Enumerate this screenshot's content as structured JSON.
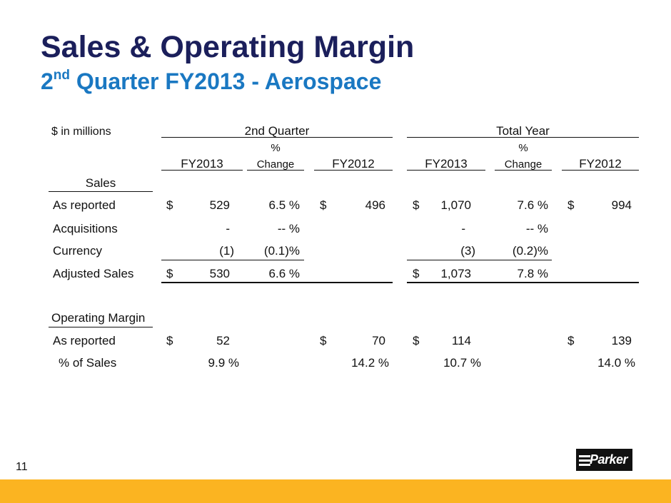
{
  "slide": {
    "title": "Sales & Operating Margin",
    "subtitle_ordinal": "2",
    "subtitle_suffix": "nd",
    "subtitle_rest": " Quarter FY2013 - Aerospace",
    "page_number": "11",
    "logo_text": "Parker",
    "colors": {
      "title": "#1b1f5b",
      "subtitle": "#1a78c2",
      "band": "#fbb421"
    }
  },
  "table": {
    "units": "$  in millions",
    "group_q": "2nd Quarter",
    "group_y": "Total Year",
    "col_fy2013": "FY2013",
    "col_pct": "%",
    "col_change": "Change",
    "col_fy2012": "FY2012",
    "sales_header": "Sales",
    "om_header": "Operating Margin",
    "rows": [
      {
        "label": "As reported",
        "cur1": "$",
        "q13": "529",
        "qchg": "6.5 %",
        "cur2": "$",
        "q12": "496",
        "cur3": "$",
        "y13": "1,070",
        "ychg": "7.6 %",
        "cur4": "$",
        "y12": "994"
      },
      {
        "label": "Acquisitions",
        "q13": "-",
        "qchg": "-- %",
        "y13": "-",
        "ychg": "-- %"
      },
      {
        "label": "Currency",
        "q13": "(1)",
        "qchg": "(0.1)%",
        "y13": "(3)",
        "ychg": "(0.2)%"
      },
      {
        "label": "Adjusted Sales",
        "cur1": "$",
        "q13": "530",
        "qchg": "6.6 %",
        "cur3": "$",
        "y13": "1,073",
        "ychg": "7.8 %"
      },
      {
        "label": "As reported",
        "cur1": "$",
        "q13": "52",
        "cur2": "$",
        "q12": "70",
        "cur3": "$",
        "y13": "114",
        "cur4": "$",
        "y12": "139"
      },
      {
        "label": "% of Sales",
        "q13": "9.9 %",
        "q12": "14.2 %",
        "y13": "10.7 %",
        "y12": "14.0 %"
      }
    ]
  }
}
